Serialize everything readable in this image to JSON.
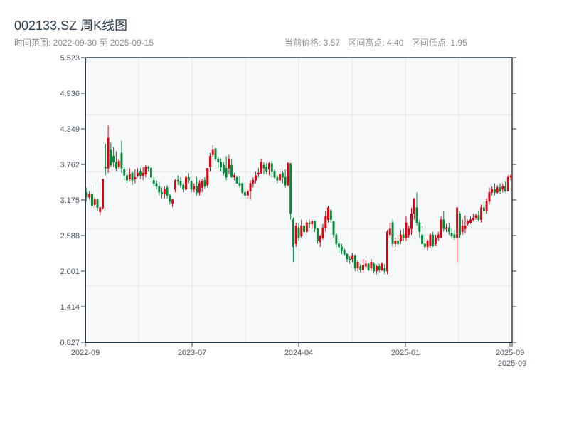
{
  "header": {
    "title": "002133.SZ 周K线图",
    "range_label": "时间范围: 2022-09-30 至 2025-09-15",
    "current_price": "当前价格: 3.57",
    "range_high": "区间高点: 4.40",
    "range_low": "区间低点: 1.95"
  },
  "colors": {
    "up": "#e0000f",
    "down": "#008a37",
    "plot_bg": "#f6f8fa",
    "axis": "#2a3a4a",
    "grid": "#e1e4e8"
  },
  "chart_data": {
    "type": "candlestick",
    "title": "002133.SZ 周K线图",
    "ylim": [
      0.827,
      5.523
    ],
    "y_ticks": [
      "5.523",
      "4.936",
      "4.349",
      "3.762",
      "3.175",
      "2.588",
      "2.001",
      "1.414",
      "0.827"
    ],
    "x_ticks": [
      {
        "label": "2022-09",
        "pos": 0
      },
      {
        "label": "2023-07",
        "pos": 0.25
      },
      {
        "label": "2024-04",
        "pos": 0.5
      },
      {
        "label": "2025-01",
        "pos": 0.75
      },
      {
        "label": "2025-09",
        "pos": 0.995
      },
      {
        "label": "2025-09",
        "pos": 1
      }
    ],
    "ohlc_format": "[open, close, low, high]",
    "candles": [
      [
        3.3,
        3.22,
        3.15,
        3.38
      ],
      [
        3.22,
        3.28,
        3.18,
        3.32
      ],
      [
        3.28,
        3.08,
        3.04,
        3.42
      ],
      [
        3.1,
        3.18,
        3.05,
        3.22
      ],
      [
        3.18,
        3.05,
        3.0,
        3.2
      ],
      [
        2.98,
        3.05,
        2.93,
        3.06
      ],
      [
        3.05,
        3.52,
        3.02,
        3.52
      ],
      [
        3.72,
        3.7,
        3.58,
        4.1
      ],
      [
        3.7,
        4.2,
        3.62,
        4.4
      ],
      [
        4.0,
        3.75,
        3.72,
        4.12
      ],
      [
        3.9,
        3.8,
        3.72,
        4.05
      ],
      [
        3.8,
        3.7,
        3.65,
        3.98
      ],
      [
        3.72,
        3.82,
        3.68,
        3.86
      ],
      [
        3.95,
        3.7,
        3.62,
        4.15
      ],
      [
        3.68,
        3.58,
        3.5,
        3.72
      ],
      [
        3.58,
        3.5,
        3.45,
        3.62
      ],
      [
        3.52,
        3.6,
        3.48,
        3.7
      ],
      [
        3.62,
        3.5,
        3.42,
        3.65
      ],
      [
        3.52,
        3.55,
        3.45,
        3.68
      ],
      [
        3.58,
        3.62,
        3.55,
        3.7
      ],
      [
        3.65,
        3.58,
        3.52,
        3.7
      ],
      [
        3.58,
        3.62,
        3.5,
        3.72
      ],
      [
        3.6,
        3.72,
        3.55,
        3.75
      ],
      [
        3.72,
        3.7,
        3.65,
        3.74
      ],
      [
        3.7,
        3.55,
        3.5,
        3.72
      ],
      [
        3.5,
        3.45,
        3.4,
        3.55
      ],
      [
        3.45,
        3.4,
        3.35,
        3.5
      ],
      [
        3.4,
        3.3,
        3.25,
        3.48
      ],
      [
        3.3,
        3.28,
        3.2,
        3.38
      ],
      [
        3.28,
        3.35,
        3.2,
        3.4
      ],
      [
        3.38,
        3.25,
        3.2,
        3.42
      ],
      [
        3.25,
        3.15,
        3.1,
        3.28
      ],
      [
        3.12,
        3.18,
        3.06,
        3.19
      ],
      [
        3.35,
        3.5,
        3.3,
        3.52
      ],
      [
        3.5,
        3.48,
        3.42,
        3.58
      ],
      [
        3.48,
        3.42,
        3.38,
        3.55
      ],
      [
        3.42,
        3.35,
        3.3,
        3.45
      ],
      [
        3.35,
        3.55,
        3.32,
        3.58
      ],
      [
        3.55,
        3.5,
        3.45,
        3.62
      ],
      [
        3.48,
        3.35,
        3.3,
        3.5
      ],
      [
        3.35,
        3.4,
        3.3,
        3.45
      ],
      [
        3.4,
        3.3,
        3.25,
        3.55
      ],
      [
        3.3,
        3.45,
        3.25,
        3.5
      ],
      [
        3.38,
        3.48,
        3.3,
        3.52
      ],
      [
        3.5,
        3.4,
        3.36,
        3.55
      ],
      [
        3.42,
        3.7,
        3.38,
        3.7
      ],
      [
        3.72,
        3.9,
        3.65,
        3.95
      ],
      [
        3.92,
        4.0,
        3.88,
        4.08
      ],
      [
        4.02,
        3.85,
        3.82,
        4.04
      ],
      [
        3.85,
        3.8,
        3.7,
        3.9
      ],
      [
        3.8,
        3.72,
        3.65,
        3.86
      ],
      [
        3.75,
        3.62,
        3.58,
        3.8
      ],
      [
        3.7,
        3.55,
        3.5,
        3.9
      ],
      [
        3.7,
        3.85,
        3.6,
        3.92
      ],
      [
        3.75,
        3.55,
        3.55,
        3.85
      ],
      [
        3.55,
        3.58,
        3.5,
        3.62
      ],
      [
        3.55,
        3.45,
        3.45,
        3.56
      ],
      [
        3.45,
        3.42,
        3.38,
        3.56
      ],
      [
        3.45,
        3.3,
        3.28,
        3.46
      ],
      [
        3.3,
        3.25,
        3.2,
        3.35
      ],
      [
        3.25,
        3.32,
        3.2,
        3.35
      ],
      [
        3.32,
        3.45,
        3.18,
        3.5
      ],
      [
        3.45,
        3.5,
        3.38,
        3.55
      ],
      [
        3.5,
        3.58,
        3.45,
        3.65
      ],
      [
        3.6,
        3.62,
        3.55,
        3.7
      ],
      [
        3.62,
        3.8,
        3.6,
        3.85
      ],
      [
        3.75,
        3.7,
        3.6,
        3.8
      ],
      [
        3.72,
        3.65,
        3.6,
        3.78
      ],
      [
        3.68,
        3.78,
        3.58,
        3.8
      ],
      [
        3.78,
        3.65,
        3.55,
        3.82
      ],
      [
        3.65,
        3.55,
        3.52,
        3.68
      ],
      [
        3.55,
        3.5,
        3.45,
        3.58
      ],
      [
        3.5,
        3.6,
        3.45,
        3.7
      ],
      [
        3.62,
        3.55,
        3.45,
        3.66
      ],
      [
        3.55,
        3.42,
        3.38,
        3.68
      ],
      [
        3.42,
        3.78,
        3.4,
        3.8
      ],
      [
        3.78,
        2.95,
        2.85,
        3.78
      ],
      [
        2.85,
        2.4,
        2.15,
        2.88
      ],
      [
        2.45,
        2.75,
        2.4,
        2.8
      ],
      [
        2.72,
        2.55,
        2.5,
        2.8
      ],
      [
        2.58,
        2.75,
        2.55,
        2.85
      ],
      [
        2.75,
        2.65,
        2.6,
        2.8
      ],
      [
        2.65,
        2.8,
        2.6,
        2.85
      ],
      [
        2.8,
        2.78,
        2.72,
        2.85
      ],
      [
        2.78,
        2.82,
        2.7,
        2.85
      ],
      [
        2.82,
        2.7,
        2.65,
        2.84
      ],
      [
        2.7,
        2.5,
        2.45,
        2.72
      ],
      [
        2.48,
        2.58,
        2.4,
        2.6
      ],
      [
        2.55,
        2.72,
        2.52,
        2.78
      ],
      [
        2.72,
        2.9,
        2.65,
        3.0
      ],
      [
        2.85,
        3.05,
        2.8,
        3.08
      ],
      [
        3.0,
        2.85,
        2.8,
        3.02
      ],
      [
        2.82,
        2.6,
        2.55,
        2.84
      ],
      [
        2.6,
        2.45,
        2.4,
        2.62
      ],
      [
        2.45,
        2.4,
        2.3,
        2.5
      ],
      [
        2.4,
        2.35,
        2.28,
        2.45
      ],
      [
        2.35,
        2.28,
        2.25,
        2.38
      ],
      [
        2.28,
        2.2,
        2.15,
        2.3
      ],
      [
        2.2,
        2.18,
        2.12,
        2.25
      ],
      [
        2.2,
        2.25,
        2.15,
        2.3
      ],
      [
        2.25,
        2.05,
        2.0,
        2.28
      ],
      [
        2.05,
        2.15,
        2.0,
        2.18
      ],
      [
        2.08,
        2.02,
        1.98,
        2.12
      ],
      [
        2.02,
        2.1,
        1.98,
        2.2
      ],
      [
        2.08,
        2.12,
        2.05,
        2.18
      ],
      [
        2.12,
        2.02,
        2.0,
        2.14
      ],
      [
        2.05,
        2.15,
        2.0,
        2.2
      ],
      [
        2.12,
        2.0,
        1.96,
        2.15
      ],
      [
        2.0,
        2.08,
        1.95,
        2.1
      ],
      [
        2.08,
        2.02,
        1.98,
        2.12
      ],
      [
        2.02,
        2.12,
        2.0,
        2.15
      ],
      [
        2.05,
        2.0,
        1.95,
        2.12
      ],
      [
        2.0,
        2.65,
        1.95,
        2.68
      ],
      [
        2.6,
        2.7,
        2.55,
        2.8
      ],
      [
        2.8,
        2.45,
        2.4,
        2.85
      ],
      [
        2.45,
        2.5,
        2.4,
        2.55
      ],
      [
        2.5,
        2.45,
        2.4,
        2.6
      ],
      [
        2.5,
        2.6,
        2.45,
        2.68
      ],
      [
        2.6,
        2.55,
        2.5,
        2.7
      ],
      [
        2.55,
        2.8,
        2.5,
        2.9
      ],
      [
        2.6,
        2.7,
        2.55,
        2.75
      ],
      [
        2.7,
        2.95,
        2.6,
        3.05
      ],
      [
        2.95,
        3.2,
        2.85,
        3.2
      ],
      [
        3.05,
        2.8,
        2.75,
        3.3
      ],
      [
        2.8,
        2.65,
        2.55,
        2.85
      ],
      [
        2.6,
        2.45,
        2.4,
        2.75
      ],
      [
        2.45,
        2.4,
        2.35,
        2.55
      ],
      [
        2.4,
        2.5,
        2.35,
        2.52
      ],
      [
        2.42,
        2.6,
        2.38,
        2.62
      ],
      [
        2.6,
        2.42,
        2.4,
        2.65
      ],
      [
        2.45,
        2.55,
        2.42,
        2.6
      ],
      [
        2.55,
        2.6,
        2.5,
        2.65
      ],
      [
        2.55,
        2.85,
        2.55,
        2.9
      ],
      [
        2.85,
        2.7,
        2.65,
        3.0
      ],
      [
        2.7,
        2.72,
        2.65,
        2.78
      ],
      [
        2.72,
        2.65,
        2.6,
        2.8
      ],
      [
        2.62,
        2.58,
        2.55,
        2.7
      ],
      [
        2.6,
        2.55,
        2.52,
        2.68
      ],
      [
        2.55,
        3.05,
        2.15,
        3.05
      ],
      [
        2.95,
        2.6,
        2.55,
        2.98
      ],
      [
        2.65,
        2.75,
        2.6,
        2.85
      ],
      [
        2.7,
        2.75,
        2.62,
        2.92
      ],
      [
        2.78,
        2.82,
        2.75,
        2.85
      ],
      [
        2.8,
        2.85,
        2.78,
        2.9
      ],
      [
        2.85,
        2.88,
        2.82,
        2.95
      ],
      [
        2.88,
        2.92,
        2.85,
        2.95
      ],
      [
        2.92,
        2.85,
        2.82,
        3.0
      ],
      [
        2.85,
        3.05,
        2.8,
        3.1
      ],
      [
        3.05,
        3.0,
        2.95,
        3.15
      ],
      [
        3.0,
        3.15,
        2.95,
        3.2
      ],
      [
        3.15,
        3.3,
        3.1,
        3.38
      ],
      [
        3.3,
        3.35,
        3.25,
        3.4
      ],
      [
        3.35,
        3.3,
        3.25,
        3.45
      ],
      [
        3.3,
        3.38,
        3.28,
        3.42
      ],
      [
        3.38,
        3.32,
        3.28,
        3.45
      ],
      [
        3.35,
        3.4,
        3.3,
        3.45
      ],
      [
        3.4,
        3.32,
        3.3,
        3.48
      ],
      [
        3.32,
        3.55,
        3.32,
        3.58
      ],
      [
        3.55,
        3.57,
        3.5,
        3.6
      ]
    ]
  }
}
